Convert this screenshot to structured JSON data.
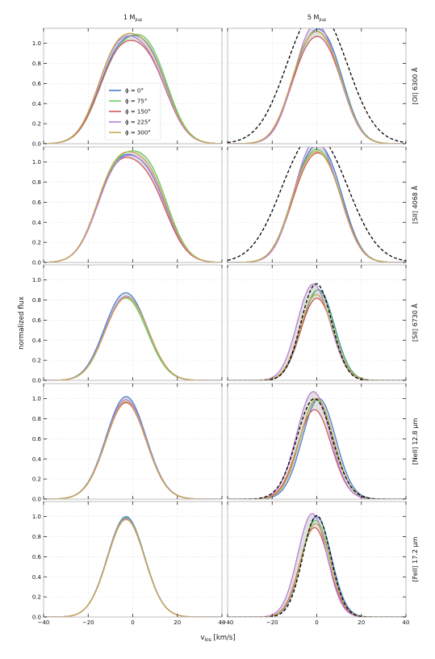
{
  "chart_data": {
    "type": "line",
    "ylabel": "normalized flux",
    "xlabel": "v",
    "xlabel_sub": "los",
    "xlabel_unit": " [km/s]",
    "xlim": [
      -40,
      40
    ],
    "ylim": [
      0,
      1.15
    ],
    "xticks": [
      -40,
      -20,
      0,
      20,
      40
    ],
    "yticks": [
      0.0,
      0.2,
      0.4,
      0.6,
      0.8,
      1.0
    ],
    "ytick_labels": [
      "0.0",
      "0.2",
      "0.4",
      "0.6",
      "0.8",
      "1.0"
    ],
    "grid": true,
    "columns": [
      {
        "key": "1mjup",
        "title_main": "1 M",
        "title_sub": "Jup"
      },
      {
        "key": "5mjup",
        "title_main": "5 M",
        "title_sub": "Jup"
      }
    ],
    "rows": [
      {
        "key": "oi",
        "label": "[OI] 6300 Å"
      },
      {
        "key": "sii4068",
        "label": "[SII] 4068 Å"
      },
      {
        "key": "sii6730",
        "label": "[SII] 6730 Å"
      },
      {
        "key": "neii",
        "label": "[NeII] 12.8 μm"
      },
      {
        "key": "feii",
        "label": "[FeII] 17.2 μm"
      }
    ],
    "legend": {
      "placement": "inside-left",
      "entries": [
        "ϕ = 0°",
        "ϕ = 75°",
        "ϕ = 150°",
        "ϕ = 225°",
        "ϕ = 300°"
      ]
    },
    "series_colors": [
      "#4a7fcf",
      "#6ccb5f",
      "#d05a5a",
      "#b87fd8",
      "#c8a850"
    ],
    "reference_line": {
      "color": "#000000",
      "style": "dashed"
    },
    "band_color": "#c8c8c8",
    "profiles": {
      "oi": {
        "1mjup": [
          {
            "sigma": 8.5,
            "peaks": [
              [
                -8.5,
                0.5
              ],
              [
                8.5,
                0.52
              ]
            ],
            "plateau": 0.46
          },
          {
            "sigma": 8.5,
            "peaks": [
              [
                -8.5,
                0.48
              ],
              [
                8.5,
                0.58
              ]
            ],
            "plateau": 0.44
          },
          {
            "sigma": 8.5,
            "peaks": [
              [
                -8.5,
                0.48
              ],
              [
                8.5,
                0.44
              ]
            ],
            "plateau": 0.47
          },
          {
            "sigma": 8.5,
            "peaks": [
              [
                -8.5,
                0.56
              ],
              [
                8.5,
                0.46
              ]
            ],
            "plateau": 0.45
          },
          {
            "sigma": 8.5,
            "peaks": [
              [
                -8.5,
                0.58
              ],
              [
                8.5,
                0.52
              ]
            ],
            "plateau": 0.43
          }
        ],
        "5mjup": [
          {
            "sigma": 7.5,
            "peaks": [
              [
                -6,
                0.47
              ],
              [
                6,
                0.55
              ]
            ],
            "plateau": 0.4
          },
          {
            "sigma": 7.5,
            "peaks": [
              [
                -6,
                0.49
              ],
              [
                6,
                0.5
              ]
            ],
            "plateau": 0.4
          },
          {
            "sigma": 7.5,
            "peaks": [
              [
                -6,
                0.45
              ],
              [
                6,
                0.47
              ]
            ],
            "plateau": 0.4
          },
          {
            "sigma": 7.5,
            "peaks": [
              [
                -4.5,
                0.58
              ],
              [
                6,
                0.45
              ]
            ],
            "plateau": 0.38
          },
          {
            "sigma": 7.5,
            "peaks": [
              [
                -6,
                0.5
              ],
              [
                6,
                0.49
              ]
            ],
            "plateau": 0.4
          }
        ],
        "ref5": {
          "sigma": 11,
          "peaks": [
            [
              -6,
              0.55
            ],
            [
              6,
              0.58
            ]
          ],
          "plateau": 0.36
        }
      },
      "sii4068": {
        "1mjup": [
          {
            "sigma": 8.5,
            "peaks": [
              [
                -9,
                0.56
              ],
              [
                8.5,
                0.46
              ]
            ],
            "plateau": 0.47
          },
          {
            "sigma": 8.5,
            "peaks": [
              [
                -9,
                0.57
              ],
              [
                8.5,
                0.57
              ]
            ],
            "plateau": 0.44
          },
          {
            "sigma": 8.5,
            "peaks": [
              [
                -9,
                0.55
              ],
              [
                8.5,
                0.41
              ]
            ],
            "plateau": 0.47
          },
          {
            "sigma": 8.5,
            "peaks": [
              [
                -9,
                0.54
              ],
              [
                8.5,
                0.47
              ]
            ],
            "plateau": 0.47
          },
          {
            "sigma": 8.5,
            "peaks": [
              [
                -9,
                0.6
              ],
              [
                8.5,
                0.52
              ]
            ],
            "plateau": 0.44
          }
        ],
        "5mjup": [
          {
            "sigma": 7.5,
            "peaks": [
              [
                -6,
                0.5
              ],
              [
                6,
                0.56
              ]
            ],
            "plateau": 0.4
          },
          {
            "sigma": 7.5,
            "peaks": [
              [
                -6,
                0.5
              ],
              [
                6,
                0.5
              ]
            ],
            "plateau": 0.4
          },
          {
            "sigma": 7.5,
            "peaks": [
              [
                -6,
                0.45
              ],
              [
                6,
                0.5
              ]
            ],
            "plateau": 0.4
          },
          {
            "sigma": 7.5,
            "peaks": [
              [
                -4.5,
                0.6
              ],
              [
                6,
                0.45
              ]
            ],
            "plateau": 0.38
          },
          {
            "sigma": 7.5,
            "peaks": [
              [
                -6,
                0.49
              ],
              [
                6,
                0.48
              ]
            ],
            "plateau": 0.4
          }
        ],
        "ref5": {
          "sigma": 11.5,
          "peaks": [
            [
              -8,
              0.56
            ],
            [
              6,
              0.54
            ]
          ],
          "plateau": 0.36
        }
      },
      "sii6730": {
        "1mjup": [
          {
            "sigma": 8,
            "peaks": [
              [
                -7,
                0.56
              ],
              [
                2,
                0.46
              ]
            ],
            "plateau": 0.0
          },
          {
            "sigma": 8,
            "peaks": [
              [
                -6.5,
                0.54
              ],
              [
                2,
                0.4
              ]
            ],
            "plateau": 0.0
          },
          {
            "sigma": 8,
            "peaks": [
              [
                -7,
                0.5
              ],
              [
                2,
                0.47
              ]
            ],
            "plateau": 0.0
          },
          {
            "sigma": 8,
            "peaks": [
              [
                -7,
                0.52
              ],
              [
                2,
                0.46
              ]
            ],
            "plateau": 0.0
          },
          {
            "sigma": 8,
            "peaks": [
              [
                -7,
                0.5
              ],
              [
                2,
                0.47
              ]
            ],
            "plateau": 0.0
          }
        ],
        "5mjup": [
          {
            "sigma": 6.5,
            "peaks": [
              [
                -3,
                0.4
              ],
              [
                3,
                0.6
              ]
            ],
            "plateau": 0.0
          },
          {
            "sigma": 6.5,
            "peaks": [
              [
                -3,
                0.45
              ],
              [
                3,
                0.55
              ]
            ],
            "plateau": 0.0
          },
          {
            "sigma": 6.5,
            "peaks": [
              [
                -3,
                0.45
              ],
              [
                3,
                0.46
              ]
            ],
            "plateau": 0.0
          },
          {
            "sigma": 6.5,
            "peaks": [
              [
                -3.5,
                0.7
              ],
              [
                3,
                0.37
              ]
            ],
            "plateau": 0.0
          },
          {
            "sigma": 6.5,
            "peaks": [
              [
                -3,
                0.5
              ],
              [
                3,
                0.45
              ]
            ],
            "plateau": 0.0
          }
        ],
        "ref5": {
          "sigma": 6,
          "peaks": [
            [
              -3,
              0.57
            ],
            [
              3,
              0.52
            ]
          ],
          "plateau": 0.0
        }
      },
      "neii": {
        "1mjup": [
          {
            "sigma": 9,
            "peaks": [
              [
                -3,
                1.02
              ]
            ],
            "plateau": 0.0
          },
          {
            "sigma": 9,
            "peaks": [
              [
                -3,
                0.97
              ]
            ],
            "plateau": 0.0
          },
          {
            "sigma": 9,
            "peaks": [
              [
                -3,
                0.96
              ]
            ],
            "plateau": 0.0
          },
          {
            "sigma": 9,
            "peaks": [
              [
                -3,
                0.99
              ]
            ],
            "plateau": 0.0
          },
          {
            "sigma": 9,
            "peaks": [
              [
                -3,
                0.97
              ]
            ],
            "plateau": 0.0
          }
        ],
        "5mjup": [
          {
            "sigma": 7.5,
            "peaks": [
              [
                1,
                1.0
              ]
            ],
            "plateau": 0.0
          },
          {
            "sigma": 7.5,
            "peaks": [
              [
                0,
                0.99
              ]
            ],
            "plateau": 0.0
          },
          {
            "sigma": 7.5,
            "peaks": [
              [
                -1,
                0.89
              ]
            ],
            "plateau": 0.0
          },
          {
            "sigma": 7.5,
            "peaks": [
              [
                -1.5,
                1.07
              ]
            ],
            "plateau": 0.0
          },
          {
            "sigma": 7.5,
            "peaks": [
              [
                0,
                1.0
              ]
            ],
            "plateau": 0.0
          }
        ],
        "ref5": {
          "sigma": 8,
          "peaks": [
            [
              -1,
              1.0
            ]
          ],
          "plateau": 0.0
        }
      },
      "feii": {
        "1mjup": [
          {
            "sigma": 8.3,
            "peaks": [
              [
                -3,
                1.0
              ]
            ],
            "plateau": 0.0
          },
          {
            "sigma": 8.3,
            "peaks": [
              [
                -3,
                0.99
              ]
            ],
            "plateau": 0.0
          },
          {
            "sigma": 8.3,
            "peaks": [
              [
                -3,
                0.98
              ]
            ],
            "plateau": 0.0
          },
          {
            "sigma": 8.3,
            "peaks": [
              [
                -3,
                0.98
              ]
            ],
            "plateau": 0.0
          },
          {
            "sigma": 8.3,
            "peaks": [
              [
                -3,
                0.97
              ]
            ],
            "plateau": 0.0
          }
        ],
        "5mjup": [
          {
            "sigma": 6.5,
            "peaks": [
              [
                0,
                1.0
              ]
            ],
            "plateau": 0.0
          },
          {
            "sigma": 6.5,
            "peaks": [
              [
                -0.5,
                0.96
              ]
            ],
            "plateau": 0.0
          },
          {
            "sigma": 6.5,
            "peaks": [
              [
                -1,
                0.89
              ]
            ],
            "plateau": 0.0
          },
          {
            "sigma": 6.5,
            "peaks": [
              [
                -2,
                1.03
              ]
            ],
            "plateau": 0.0
          },
          {
            "sigma": 6.5,
            "peaks": [
              [
                -0.5,
                0.93
              ]
            ],
            "plateau": 0.0
          }
        ],
        "ref5": {
          "sigma": 6.2,
          "peaks": [
            [
              0,
              1.01
            ]
          ],
          "plateau": 0.0
        }
      }
    }
  }
}
